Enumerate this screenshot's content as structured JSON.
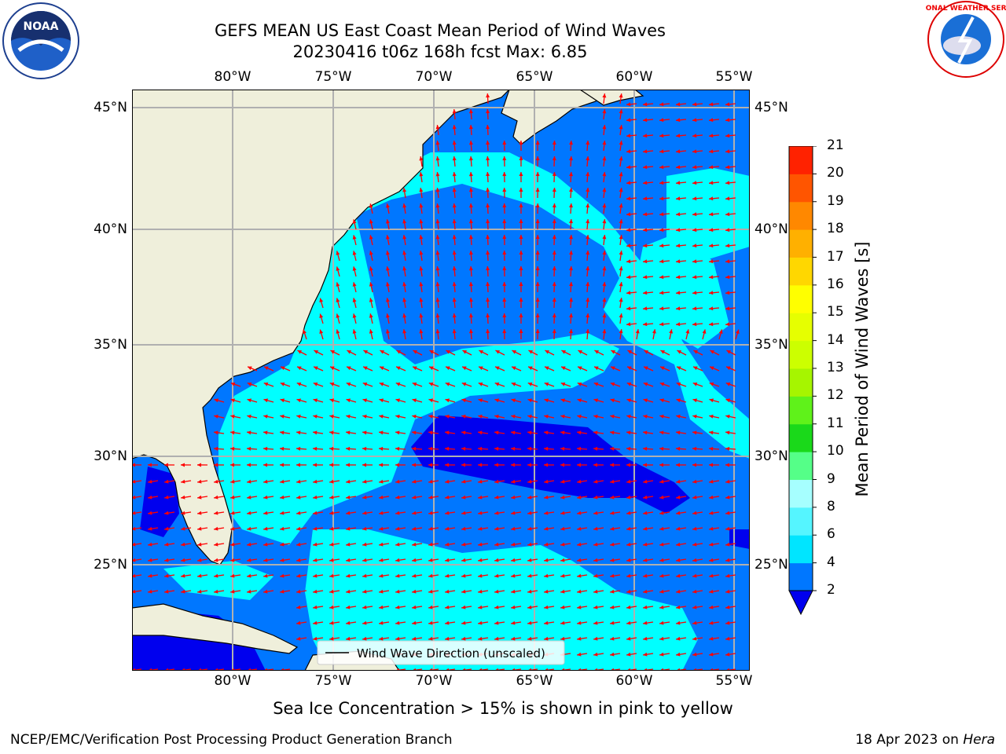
{
  "title_line1": "GEFS MEAN US East Coast Mean Period of Wind Waves",
  "title_line2": "20230416 t06z 168h fcst   Max: 6.85",
  "lon_labels": [
    "80°W",
    "75°W",
    "70°W",
    "65°W",
    "60°W",
    "55°W"
  ],
  "lat_labels": [
    "45°N",
    "40°N",
    "35°N",
    "30°N",
    "25°N"
  ],
  "legend_label": "Wind Wave Direction (unscaled)",
  "colorbar": {
    "title": "Mean Period of Wind Waves [s]",
    "ticks": [
      "2",
      "4",
      "6",
      "8",
      "9",
      "10",
      "11",
      "12",
      "13",
      "14",
      "15",
      "16",
      "17",
      "18",
      "19",
      "20",
      "21"
    ],
    "colors": [
      "#0077ff",
      "#00e5ff",
      "#55f5ff",
      "#a6ffff",
      "#55ff88",
      "#1ad91a",
      "#5ff21a",
      "#a6f500",
      "#ccff00",
      "#e6ff00",
      "#ffff00",
      "#ffd700",
      "#ffb000",
      "#ff8800",
      "#ff5500",
      "#ff2200",
      "#ff0000"
    ],
    "under_color": "#0000ee"
  },
  "map_colors": {
    "land": "#efefdb",
    "dark": "#0000ee",
    "mid": "#0077ff",
    "light": "#00ffff",
    "pale": "#a6ffff",
    "arrow": "#ff0000",
    "grid": "#b0b0b0"
  },
  "subnote": "Sea Ice Concentration > 15% is shown in pink to yellow",
  "footer_left": "NCEP/EMC/Verification Post Processing Product Generation Branch",
  "footer_date": "18 Apr 2023 on ",
  "footer_machine": "Hera",
  "logos": {
    "left": "NOAA",
    "right": "NATIONAL WEATHER SERVICE"
  }
}
